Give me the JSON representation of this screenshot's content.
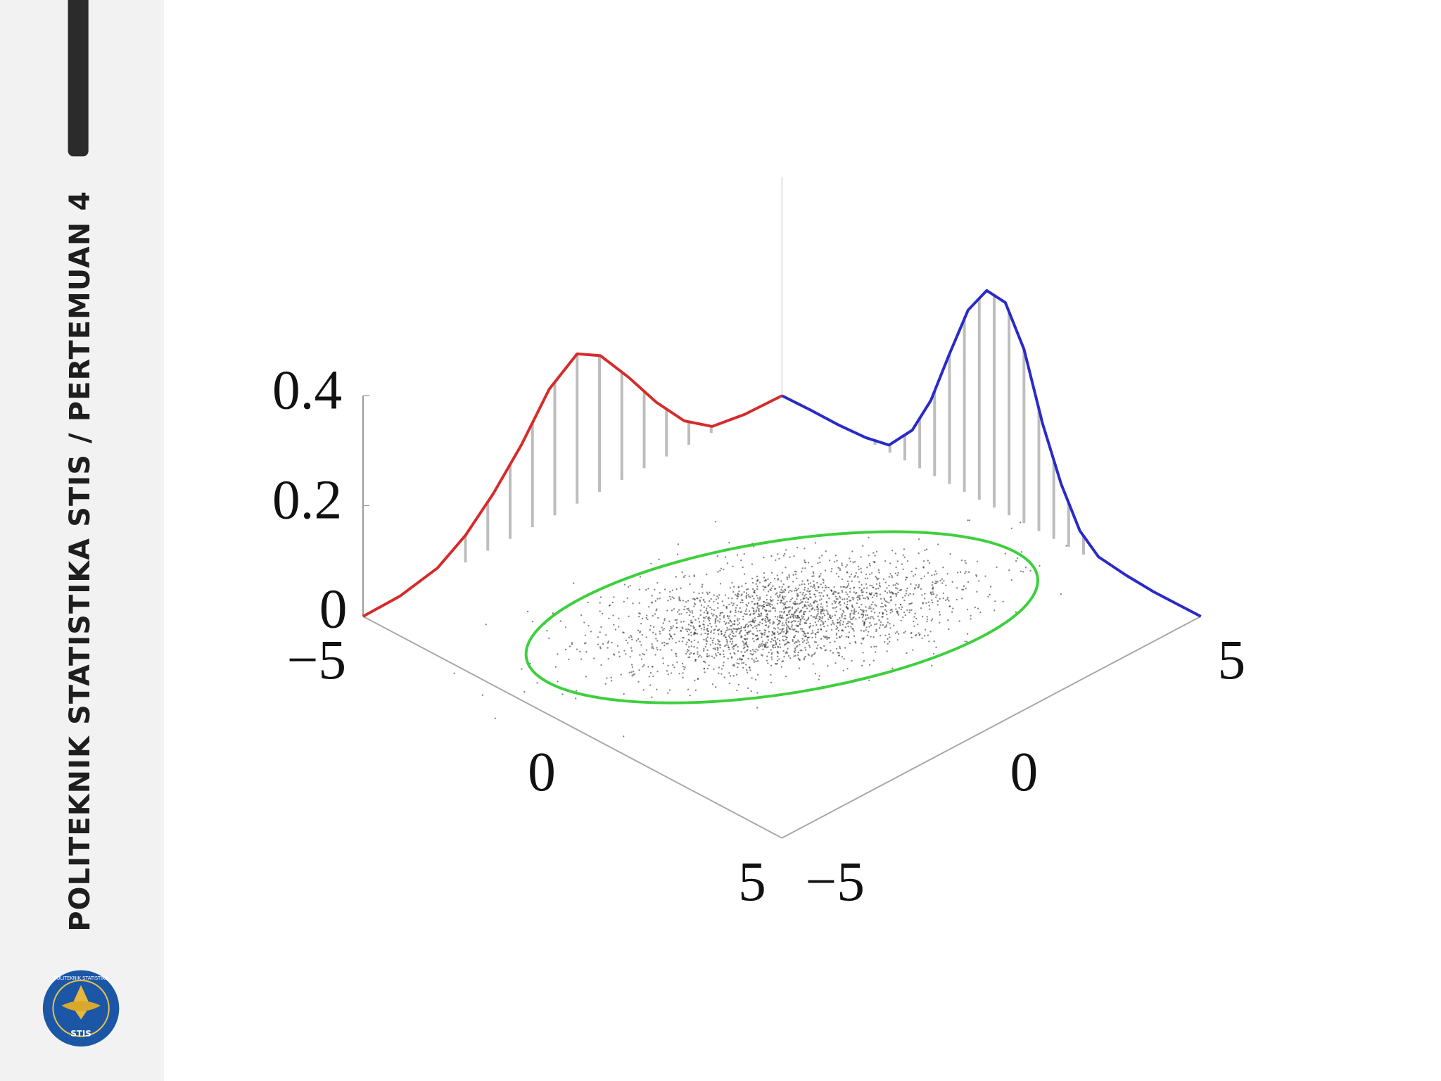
{
  "sidebar": {
    "text": "POLITEKNIK STATISTIKA STIS / PERTEMUAN 4",
    "logo_ring": "POLITEKNIK STATISTIKA",
    "logo_text": "STIS"
  },
  "figure": {
    "z_ticks": [
      "0.4",
      "0.2",
      "0"
    ],
    "left_axis_ticks": [
      "−5",
      "0",
      "5"
    ],
    "right_axis_ticks": [
      "−5",
      "0",
      "5"
    ]
  }
}
